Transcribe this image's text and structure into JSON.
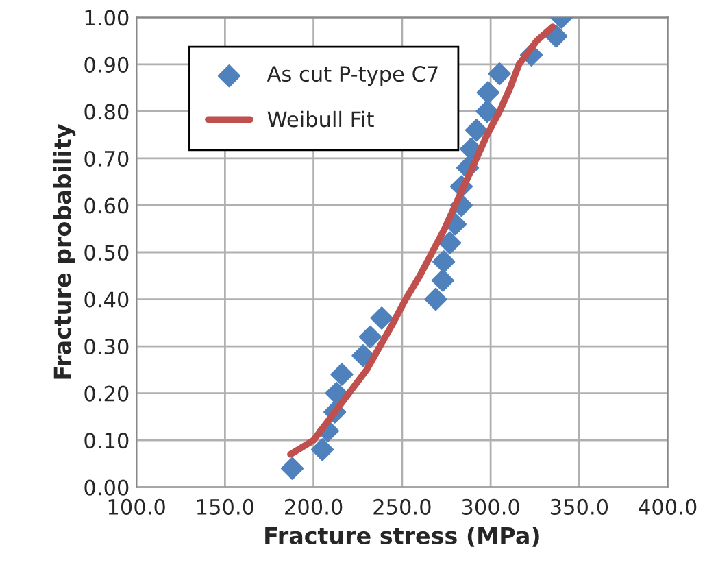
{
  "chart_data": {
    "type": "scatter",
    "xlabel": "Fracture stress (MPa)",
    "ylabel": "Fracture probability",
    "xlim": [
      100,
      400
    ],
    "xticks": [
      {
        "value": 100,
        "label": "100.0"
      },
      {
        "value": 150,
        "label": "150.0"
      },
      {
        "value": 200,
        "label": "200.0"
      },
      {
        "value": 250,
        "label": "250.0"
      },
      {
        "value": 300,
        "label": "300.0"
      },
      {
        "value": 350,
        "label": "350.0"
      },
      {
        "value": 400,
        "label": "400.0"
      }
    ],
    "ylim": [
      0,
      1
    ],
    "yticks": [
      {
        "value": 0,
        "label": "0.00"
      },
      {
        "value": 0.1,
        "label": "0.10"
      },
      {
        "value": 0.2,
        "label": "0.20"
      },
      {
        "value": 0.3,
        "label": "0.30"
      },
      {
        "value": 0.4,
        "label": "0.40"
      },
      {
        "value": 0.5,
        "label": "0.50"
      },
      {
        "value": 0.6,
        "label": "0.60"
      },
      {
        "value": 0.7,
        "label": "0.70"
      },
      {
        "value": 0.8,
        "label": "0.80"
      },
      {
        "value": 0.9,
        "label": "0.90"
      },
      {
        "value": 1.0,
        "label": "1.00"
      }
    ],
    "grid": true,
    "legend": "top left",
    "series": [
      {
        "name": "As cut P-type C7",
        "marker": "diamond",
        "color": "#4f81bd",
        "x": [
          188,
          205,
          208,
          212,
          213,
          216,
          228,
          232,
          238.5,
          269,
          273,
          273.5,
          277,
          280,
          283.5,
          283.5,
          287,
          289,
          292,
          298,
          298.5,
          305,
          323,
          337,
          340
        ],
        "values": [
          0.04,
          0.08,
          0.12,
          0.16,
          0.2,
          0.24,
          0.28,
          0.32,
          0.36,
          0.4,
          0.44,
          0.48,
          0.52,
          0.56,
          0.6,
          0.64,
          0.68,
          0.72,
          0.76,
          0.8,
          0.84,
          0.88,
          0.92,
          0.96,
          1.0
        ]
      },
      {
        "name": "Weibull Fit",
        "type": "line",
        "marker": "none",
        "color": "#c0504d",
        "x": [
          187,
          200,
          210,
          220,
          230,
          237.5,
          245,
          252,
          260,
          267,
          274,
          280,
          286,
          292,
          298,
          305,
          311,
          316,
          326,
          335
        ],
        "values": [
          0.07,
          0.1,
          0.15,
          0.2,
          0.25,
          0.3,
          0.35,
          0.4,
          0.45,
          0.5,
          0.55,
          0.6,
          0.65,
          0.7,
          0.75,
          0.8,
          0.85,
          0.9,
          0.95,
          0.98
        ]
      }
    ]
  }
}
